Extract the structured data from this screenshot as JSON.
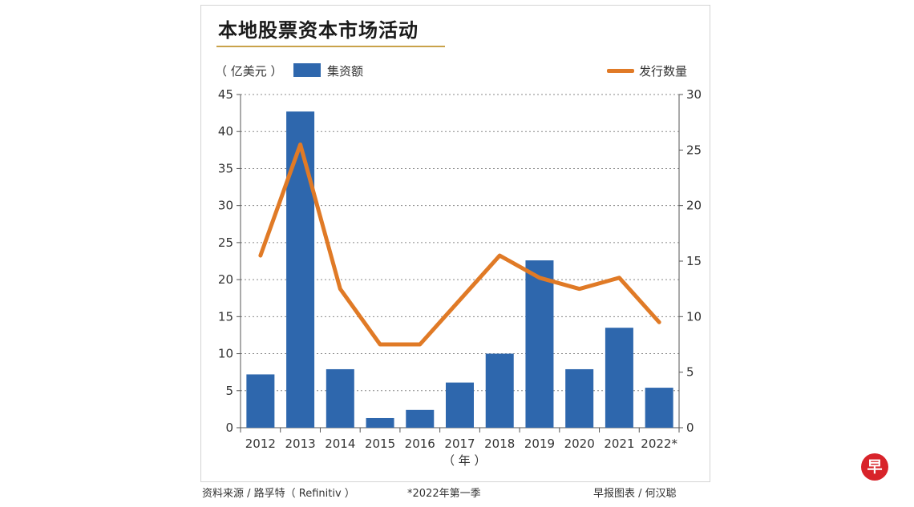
{
  "title": "本地股票资本市场活动",
  "legend": {
    "left_unit": "（ 亿美元 ）",
    "bar_label": "集资额",
    "line_label": "发行数量"
  },
  "footer": {
    "source": "资料来源 / 路孚特（ Refinitiv ）",
    "note": "*2022年第一季",
    "credit": "早报图表 / 何汉聪"
  },
  "logo_text": "早",
  "colors": {
    "bar": "#2e67ad",
    "line": "#e07a26",
    "title_rule": "#c9a24a",
    "logo": "#d8232a"
  },
  "chart_data": {
    "type": "bar",
    "title": "本地股票资本市场活动",
    "xlabel": "（ 年 ）",
    "categories": [
      "2012",
      "2013",
      "2014",
      "2015",
      "2016",
      "2017",
      "2018",
      "2019",
      "2020",
      "2021",
      "2022*"
    ],
    "series": [
      {
        "name": "集资额",
        "type": "bar",
        "axis": "left",
        "values": [
          7.2,
          42.7,
          7.9,
          1.3,
          2.4,
          6.1,
          10.0,
          22.6,
          7.9,
          13.5,
          5.4
        ]
      },
      {
        "name": "发行数量",
        "type": "line",
        "axis": "right",
        "values": [
          15.5,
          25.5,
          12.5,
          7.5,
          7.5,
          11.5,
          15.5,
          13.5,
          12.5,
          13.5,
          9.5
        ]
      }
    ],
    "y_left": {
      "label": "（ 亿美元 ）",
      "ylim": [
        0,
        45
      ],
      "ticks": [
        0,
        5,
        10,
        15,
        20,
        25,
        30,
        35,
        40,
        45
      ]
    },
    "y_right": {
      "label": "发行数量",
      "ylim": [
        0,
        30
      ],
      "ticks": [
        0,
        5,
        10,
        15,
        20,
        25,
        30
      ]
    },
    "grid": "horizontal dotted"
  }
}
